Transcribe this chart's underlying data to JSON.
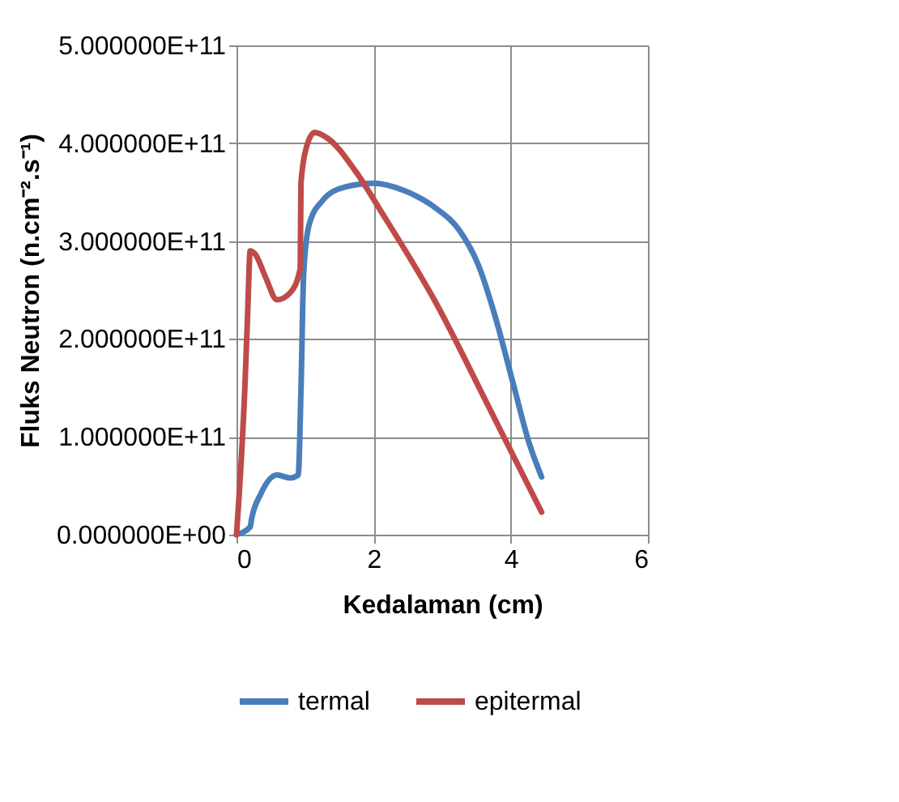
{
  "chart_data": {
    "type": "line",
    "xlabel": "Kedalaman (cm)",
    "ylabel": "Fluks Neutron (n.cm⁻².s⁻¹)",
    "xlim": [
      0,
      6
    ],
    "xticks": [
      0,
      2,
      4,
      6
    ],
    "ylim": [
      0,
      500000000000
    ],
    "yticks": [
      {
        "value": 0,
        "label": "0.000000E+00"
      },
      {
        "value": 100000000000,
        "label": "1.000000E+11"
      },
      {
        "value": 200000000000,
        "label": "2.000000E+11"
      },
      {
        "value": 300000000000,
        "label": "3.000000E+11"
      },
      {
        "value": 400000000000,
        "label": "4.000000E+11"
      },
      {
        "value": 500000000000,
        "label": "5.000000E+11"
      }
    ],
    "grid": true,
    "legend": "bottom",
    "marker": "none",
    "line_style": "solid",
    "series": [
      {
        "name": "termal",
        "color": "#4a7ebb",
        "x": [
          0,
          0.2,
          0.22,
          0.35,
          0.59,
          0.78,
          0.9,
          0.94,
          0.98,
          1.06,
          1.25,
          1.57,
          2.0,
          2.43,
          2.9,
          3.25,
          3.53,
          3.76,
          4.04,
          4.27,
          4.45
        ],
        "values": [
          0,
          8000000000,
          16000000000,
          41000000000,
          61000000000,
          58000000000,
          61000000000,
          147000000000,
          268000000000,
          317000000000,
          341000000000,
          355000000000,
          359000000000,
          352000000000,
          334000000000,
          311000000000,
          275000000000,
          226000000000,
          153000000000,
          93000000000,
          59000000000
        ]
      },
      {
        "name": "epitermal",
        "color": "#be4b48",
        "x": [
          0,
          0.12,
          0.16,
          0.2,
          0.27,
          0.43,
          0.59,
          0.78,
          0.93,
          0.94,
          1.02,
          1.14,
          1.33,
          1.73,
          2.12,
          2.9,
          3.69,
          4.45
        ],
        "values": [
          0,
          147000000000,
          220000000000,
          290000000000,
          287000000000,
          262000000000,
          240000000000,
          247000000000,
          272000000000,
          359000000000,
          396000000000,
          411000000000,
          405000000000,
          372000000000,
          329000000000,
          238000000000,
          129000000000,
          23000000000
        ]
      }
    ]
  }
}
